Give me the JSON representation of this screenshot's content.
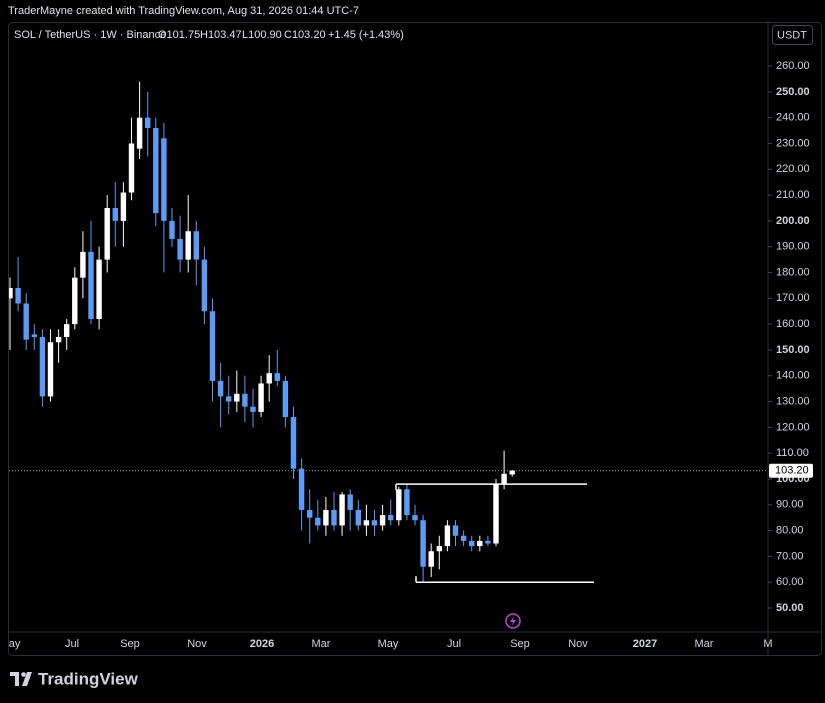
{
  "header": {
    "created": "TraderMayne created with TradingView.com, Aug 31, 2026 01:44 UTC-7",
    "symbol": "SOL / TetherUS · 1W · Binance",
    "open": "O101.75",
    "high": "H103.47",
    "low": "L100.90",
    "close": "C103.20",
    "change": "+1.45 (+1.43%)",
    "currency": "USDT"
  },
  "footer": {
    "brand": "TradingView"
  },
  "chart_data": {
    "type": "candlestick",
    "candles": [
      [
        170,
        178,
        150,
        174
      ],
      [
        174,
        186,
        165,
        168
      ],
      [
        168,
        172,
        150,
        154
      ],
      [
        156,
        160,
        150,
        155
      ],
      [
        155,
        158,
        128,
        132
      ],
      [
        132,
        158,
        130,
        153
      ],
      [
        153,
        158,
        145,
        155
      ],
      [
        155,
        162,
        150,
        160
      ],
      [
        160,
        182,
        158,
        178
      ],
      [
        178,
        196,
        170,
        188
      ],
      [
        188,
        200,
        160,
        162
      ],
      [
        162,
        190,
        158,
        185
      ],
      [
        185,
        210,
        180,
        205
      ],
      [
        205,
        215,
        190,
        200
      ],
      [
        200,
        215,
        190,
        211
      ],
      [
        211,
        240,
        208,
        230
      ],
      [
        228,
        254,
        224,
        240
      ],
      [
        240,
        250,
        225,
        236
      ],
      [
        236,
        240,
        198,
        203
      ],
      [
        232,
        238,
        180,
        200
      ],
      [
        200,
        205,
        190,
        193
      ],
      [
        193,
        202,
        180,
        185
      ],
      [
        185,
        210,
        180,
        196
      ],
      [
        196,
        200,
        175,
        185
      ],
      [
        185,
        190,
        160,
        165
      ],
      [
        165,
        170,
        130,
        138
      ],
      [
        138,
        145,
        120,
        132
      ],
      [
        132,
        140,
        125,
        130
      ],
      [
        130,
        142,
        126,
        133
      ],
      [
        133,
        140,
        122,
        128
      ],
      [
        128,
        135,
        120,
        126
      ],
      [
        126,
        140,
        124,
        137
      ],
      [
        137,
        148,
        130,
        141
      ],
      [
        141,
        150,
        136,
        138
      ],
      [
        138,
        140,
        120,
        124
      ],
      [
        124,
        128,
        100,
        104
      ],
      [
        104,
        108,
        80,
        88
      ],
      [
        88,
        96,
        75,
        85
      ],
      [
        85,
        92,
        80,
        82
      ],
      [
        82,
        93,
        78,
        88
      ],
      [
        88,
        95,
        80,
        82
      ],
      [
        82,
        95,
        78,
        94
      ],
      [
        94,
        96,
        80,
        88
      ],
      [
        88,
        92,
        80,
        82
      ],
      [
        82,
        90,
        78,
        84
      ],
      [
        84,
        88,
        78,
        82
      ],
      [
        82,
        90,
        80,
        86
      ],
      [
        86,
        92,
        82,
        84
      ],
      [
        84,
        97,
        82,
        96
      ],
      [
        96,
        98,
        84,
        86
      ],
      [
        86,
        90,
        82,
        84
      ],
      [
        84,
        86,
        60,
        66
      ],
      [
        66,
        75,
        62,
        72
      ],
      [
        72,
        78,
        65,
        74
      ],
      [
        74,
        84,
        72,
        82
      ],
      [
        82,
        84,
        74,
        78
      ],
      [
        78,
        80,
        74,
        76
      ],
      [
        76,
        78,
        72,
        74
      ],
      [
        74,
        78,
        72,
        76
      ],
      [
        76,
        78,
        74,
        75
      ],
      [
        75,
        100,
        74,
        98
      ],
      [
        98,
        111,
        96,
        102
      ],
      [
        101.75,
        103.47,
        100.9,
        103.2
      ]
    ],
    "up_color": "#ffffff",
    "down_color": "#5b9cf6",
    "ylim": [
      40.7,
      276.3
    ],
    "yticks": [
      {
        "value": 50,
        "label": "50.00"
      },
      {
        "value": 60,
        "label": "60.00"
      },
      {
        "value": 70,
        "label": "70.00"
      },
      {
        "value": 80,
        "label": "80.00"
      },
      {
        "value": 90,
        "label": "90.00"
      },
      {
        "value": 100,
        "label": "100.00"
      },
      {
        "value": 110,
        "label": "110.00"
      },
      {
        "value": 120,
        "label": "120.00"
      },
      {
        "value": 130,
        "label": "130.00"
      },
      {
        "value": 140,
        "label": "140.00"
      },
      {
        "value": 150,
        "label": "150.00"
      },
      {
        "value": 160,
        "label": "160.00"
      },
      {
        "value": 170,
        "label": "170.00"
      },
      {
        "value": 180,
        "label": "180.00"
      },
      {
        "value": 190,
        "label": "190.00"
      },
      {
        "value": 200,
        "label": "200.00"
      },
      {
        "value": 210,
        "label": "210.00"
      },
      {
        "value": 220,
        "label": "220.00"
      },
      {
        "value": 230,
        "label": "230.00"
      },
      {
        "value": 240,
        "label": "240.00"
      },
      {
        "value": 250,
        "label": "250.00"
      },
      {
        "value": 260,
        "label": "260.00"
      }
    ],
    "xticks": [
      "May",
      "Jul",
      "Sep",
      "Nov",
      "2026",
      "Mar",
      "May",
      "Jul",
      "Sep",
      "Nov",
      "2027",
      "Mar",
      "M"
    ],
    "last_price": {
      "value": 103.2,
      "label": "103.20"
    },
    "levels": [
      98,
      60
    ]
  }
}
